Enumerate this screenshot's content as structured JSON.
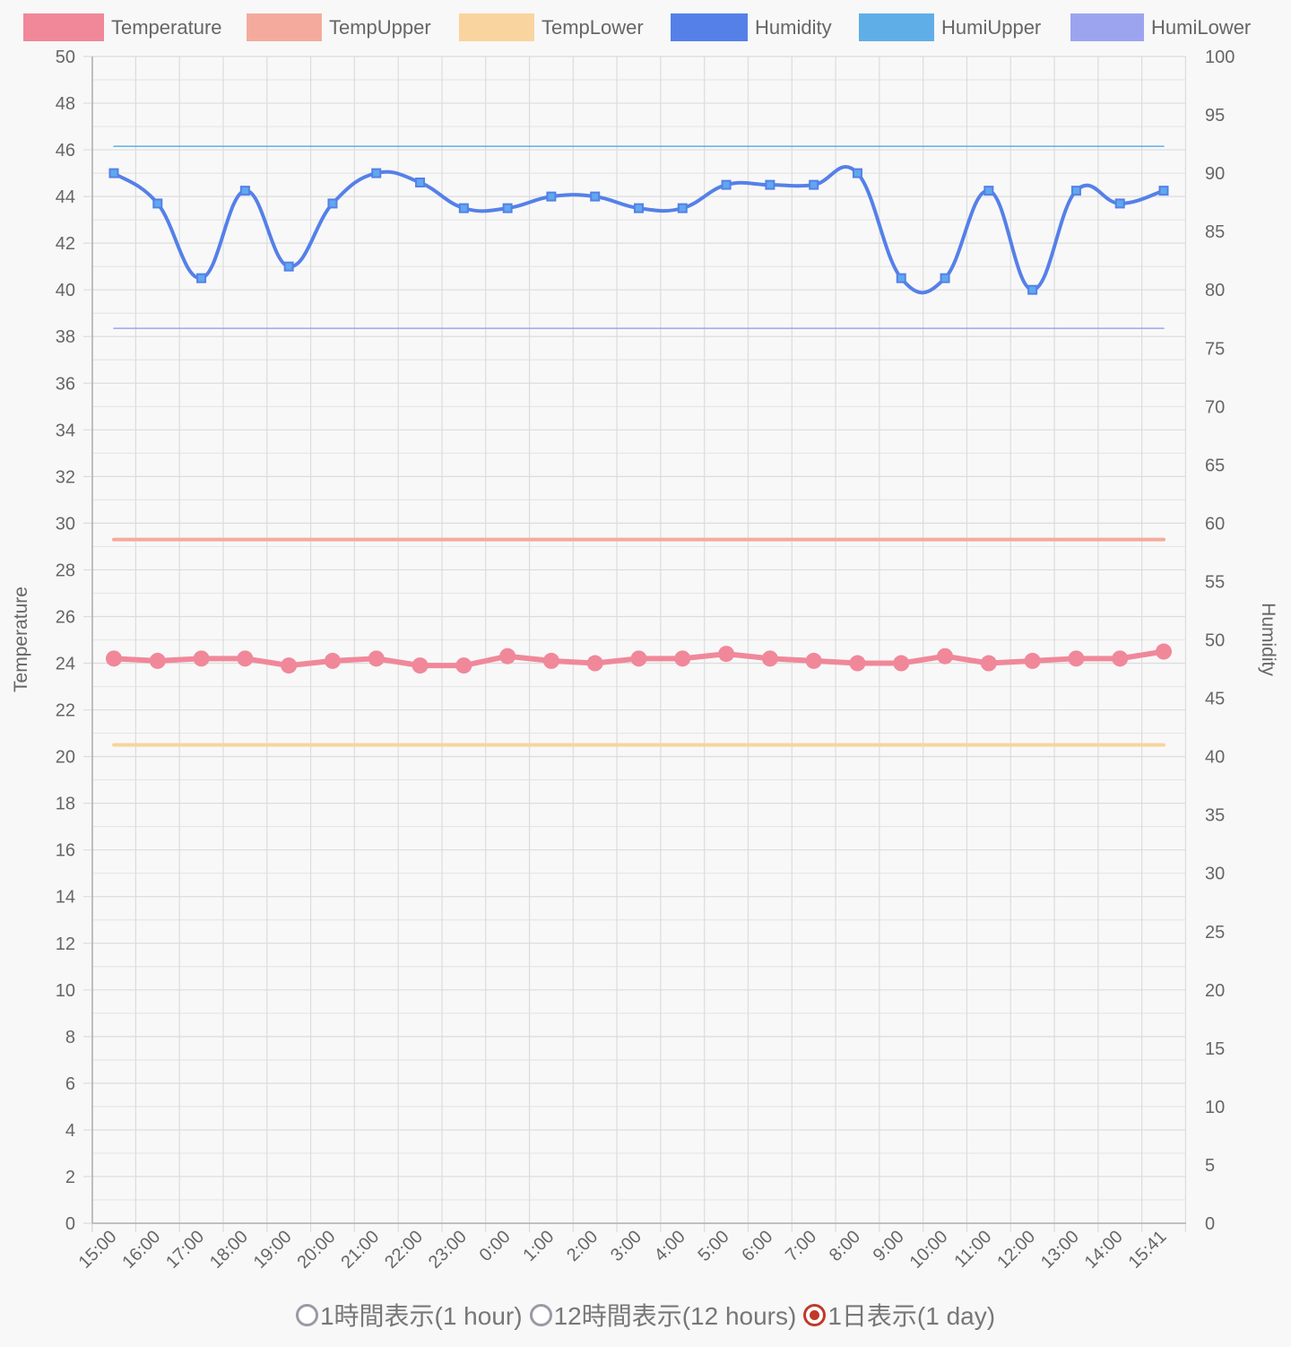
{
  "chart_data": {
    "type": "line",
    "legend_position": "top",
    "categories": [
      "15:00",
      "16:00",
      "17:00",
      "18:00",
      "19:00",
      "20:00",
      "21:00",
      "22:00",
      "23:00",
      "0:00",
      "1:00",
      "2:00",
      "3:00",
      "4:00",
      "5:00",
      "6:00",
      "7:00",
      "8:00",
      "9:00",
      "10:00",
      "11:00",
      "12:00",
      "13:00",
      "14:00",
      "15:41"
    ],
    "y_left": {
      "label": "Temperature",
      "min": 0,
      "max": 50,
      "step": 2,
      "minor_step": 1
    },
    "y_right": {
      "label": "Humidity",
      "min": 0,
      "max": 100,
      "step": 5
    },
    "grid": true,
    "series": [
      {
        "name": "Temperature",
        "axis": "left",
        "color": "#f0889a",
        "line_width": 6,
        "point_radius": 9,
        "point_style": "circle",
        "smooth": false,
        "values": [
          24.2,
          24.1,
          24.2,
          24.2,
          23.9,
          24.1,
          24.2,
          23.9,
          23.9,
          24.3,
          24.1,
          24.0,
          24.2,
          24.2,
          24.4,
          24.2,
          24.1,
          24.0,
          24.0,
          24.3,
          24.0,
          24.1,
          24.2,
          24.2,
          24.5
        ]
      },
      {
        "name": "TempUpper",
        "axis": "left",
        "color": "#f4ab9d",
        "line_width": 4,
        "values": [
          29.3,
          29.3,
          29.3,
          29.3,
          29.3,
          29.3,
          29.3,
          29.3,
          29.3,
          29.3,
          29.3,
          29.3,
          29.3,
          29.3,
          29.3,
          29.3,
          29.3,
          29.3,
          29.3,
          29.3,
          29.3,
          29.3,
          29.3,
          29.3,
          29.3
        ]
      },
      {
        "name": "TempLower",
        "axis": "left",
        "color": "#f9d49e",
        "line_width": 4,
        "values": [
          20.5,
          20.5,
          20.5,
          20.5,
          20.5,
          20.5,
          20.5,
          20.5,
          20.5,
          20.5,
          20.5,
          20.5,
          20.5,
          20.5,
          20.5,
          20.5,
          20.5,
          20.5,
          20.5,
          20.5,
          20.5,
          20.5,
          20.5,
          20.5,
          20.5
        ]
      },
      {
        "name": "Humidity",
        "axis": "right",
        "color": "#5580e8",
        "point_color": "#5fa8ee",
        "line_width": 4,
        "point_size": 9,
        "point_style": "square",
        "smooth": true,
        "values": [
          90,
          87.4,
          81,
          88.5,
          82,
          87.4,
          90,
          89.2,
          87,
          87,
          88,
          88,
          87,
          87,
          89,
          89,
          89,
          90,
          81,
          81,
          88.5,
          80,
          88.5,
          87.4,
          88.5
        ]
      },
      {
        "name": "HumiUpper",
        "axis": "right",
        "color": "#60aee8",
        "line_width": 1.5,
        "values": [
          92.3,
          92.3,
          92.3,
          92.3,
          92.3,
          92.3,
          92.3,
          92.3,
          92.3,
          92.3,
          92.3,
          92.3,
          92.3,
          92.3,
          92.3,
          92.3,
          92.3,
          92.3,
          92.3,
          92.3,
          92.3,
          92.3,
          92.3,
          92.3,
          92.3
        ]
      },
      {
        "name": "HumiLower",
        "axis": "right",
        "color": "#9ca4f0",
        "line_width": 1.5,
        "values": [
          76.7,
          76.7,
          76.7,
          76.7,
          76.7,
          76.7,
          76.7,
          76.7,
          76.7,
          76.7,
          76.7,
          76.7,
          76.7,
          76.7,
          76.7,
          76.7,
          76.7,
          76.7,
          76.7,
          76.7,
          76.7,
          76.7,
          76.7,
          76.7,
          76.7
        ]
      }
    ]
  },
  "controls": {
    "options": [
      {
        "label": "1時間表示(1 hour)",
        "checked": false
      },
      {
        "label": "12時間表示(12 hours)",
        "checked": false
      },
      {
        "label": "1日表示(1 day)",
        "checked": true
      }
    ]
  }
}
